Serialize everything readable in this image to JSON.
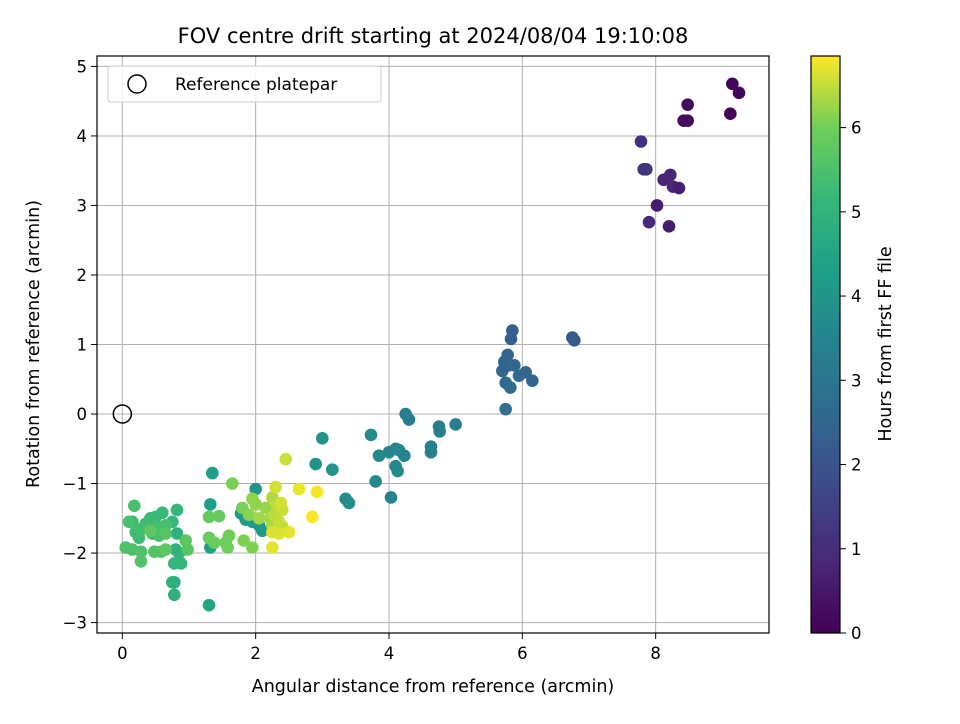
{
  "chart_data": {
    "type": "scatter",
    "title": "FOV centre drift starting at 2024/08/04 19:10:08",
    "xlabel": "Angular distance from reference (arcmin)",
    "ylabel": "Rotation from reference (arcmin)",
    "xlim": [
      -0.38,
      9.7
    ],
    "ylim": [
      -3.15,
      5.15
    ],
    "xticks": [
      0,
      2,
      4,
      6,
      8
    ],
    "yticks": [
      -3,
      -2,
      -1,
      0,
      1,
      2,
      3,
      4,
      5
    ],
    "grid": true,
    "legend": {
      "placement": "upper left",
      "entries": [
        {
          "label": "Reference platepar",
          "marker": "open-circle"
        }
      ]
    },
    "reference_point": {
      "x": 0,
      "y": 0
    },
    "colorbar": {
      "label": "Hours from first FF file",
      "colormap": "viridis",
      "range": [
        0,
        6.85
      ],
      "ticks": [
        0,
        1,
        2,
        3,
        4,
        5,
        6
      ]
    },
    "columns": [
      "x",
      "y",
      "hours"
    ],
    "points": [
      [
        9.15,
        4.75,
        0.05
      ],
      [
        9.25,
        4.62,
        0.1
      ],
      [
        9.12,
        4.32,
        0.12
      ],
      [
        8.48,
        4.45,
        0.2
      ],
      [
        8.42,
        4.22,
        0.25
      ],
      [
        8.48,
        4.22,
        0.22
      ],
      [
        7.78,
        3.92,
        1.05
      ],
      [
        7.82,
        3.52,
        1.15
      ],
      [
        7.86,
        3.52,
        1.2
      ],
      [
        8.12,
        3.37,
        0.75
      ],
      [
        8.22,
        3.44,
        0.8
      ],
      [
        8.26,
        3.27,
        0.85
      ],
      [
        8.35,
        3.25,
        0.7
      ],
      [
        8.02,
        3.0,
        0.6
      ],
      [
        7.9,
        2.76,
        0.9
      ],
      [
        8.2,
        2.7,
        0.55
      ],
      [
        6.75,
        1.1,
        2.1
      ],
      [
        6.78,
        1.06,
        2.15
      ],
      [
        5.85,
        1.2,
        2.3
      ],
      [
        5.83,
        1.08,
        2.35
      ],
      [
        5.78,
        0.85,
        2.4
      ],
      [
        5.73,
        0.75,
        2.5
      ],
      [
        5.8,
        0.7,
        2.45
      ],
      [
        5.7,
        0.62,
        2.55
      ],
      [
        5.88,
        0.7,
        2.6
      ],
      [
        5.95,
        0.55,
        2.6
      ],
      [
        6.05,
        0.6,
        2.45
      ],
      [
        6.15,
        0.48,
        2.5
      ],
      [
        5.75,
        0.45,
        2.65
      ],
      [
        5.82,
        0.38,
        2.7
      ],
      [
        5.75,
        0.07,
        2.75
      ],
      [
        4.25,
        0.0,
        3.2
      ],
      [
        4.3,
        -0.08,
        3.25
      ],
      [
        4.75,
        -0.18,
        3.3
      ],
      [
        4.76,
        -0.25,
        3.35
      ],
      [
        5.0,
        -0.15,
        3.3
      ],
      [
        4.63,
        -0.47,
        3.4
      ],
      [
        4.63,
        -0.55,
        3.45
      ],
      [
        4.1,
        -0.5,
        3.5
      ],
      [
        4.15,
        -0.52,
        3.55
      ],
      [
        4.0,
        -0.55,
        3.5
      ],
      [
        4.23,
        -0.6,
        3.5
      ],
      [
        3.85,
        -0.6,
        3.6
      ],
      [
        4.1,
        -0.75,
        3.6
      ],
      [
        4.13,
        -0.82,
        3.65
      ],
      [
        3.73,
        -0.3,
        3.7
      ],
      [
        3.8,
        -0.97,
        3.6
      ],
      [
        4.03,
        -1.2,
        3.4
      ],
      [
        3.0,
        -0.35,
        3.9
      ],
      [
        2.9,
        -0.72,
        3.95
      ],
      [
        3.15,
        -0.8,
        3.95
      ],
      [
        3.35,
        -1.22,
        3.75
      ],
      [
        3.4,
        -1.28,
        3.8
      ],
      [
        2.0,
        -1.08,
        4.0
      ],
      [
        2.05,
        -1.6,
        4.05
      ],
      [
        1.95,
        -1.55,
        4.15
      ],
      [
        2.1,
        -1.68,
        4.1
      ],
      [
        1.85,
        -1.52,
        4.2
      ],
      [
        1.78,
        -1.43,
        4.25
      ],
      [
        1.35,
        -0.85,
        4.3
      ],
      [
        1.32,
        -1.3,
        4.3
      ],
      [
        1.32,
        -1.92,
        4.4
      ],
      [
        1.3,
        -2.75,
        4.5
      ],
      [
        0.78,
        -2.42,
        4.8
      ],
      [
        0.75,
        -2.42,
        4.85
      ],
      [
        0.78,
        -2.6,
        4.9
      ],
      [
        0.82,
        -1.72,
        4.95
      ],
      [
        0.8,
        -1.95,
        5.0
      ],
      [
        0.85,
        -2.0,
        5.0
      ],
      [
        0.78,
        -2.15,
        5.05
      ],
      [
        0.88,
        -2.15,
        5.05
      ],
      [
        0.82,
        -1.38,
        5.1
      ],
      [
        0.75,
        -1.55,
        5.15
      ],
      [
        0.6,
        -1.42,
        5.2
      ],
      [
        0.5,
        -1.48,
        5.2
      ],
      [
        0.42,
        -1.5,
        5.25
      ],
      [
        0.35,
        -1.58,
        5.3
      ],
      [
        0.15,
        -1.55,
        5.25
      ],
      [
        0.2,
        -1.7,
        5.3
      ],
      [
        0.25,
        -1.78,
        5.3
      ],
      [
        0.3,
        -1.65,
        5.35
      ],
      [
        0.45,
        -1.72,
        5.35
      ],
      [
        0.52,
        -1.62,
        5.4
      ],
      [
        0.65,
        -1.6,
        5.4
      ],
      [
        0.55,
        -1.75,
        5.45
      ],
      [
        0.18,
        -1.32,
        5.45
      ],
      [
        0.1,
        -1.55,
        5.45
      ],
      [
        0.05,
        -1.92,
        5.5
      ],
      [
        0.15,
        -1.95,
        5.5
      ],
      [
        0.28,
        -1.98,
        5.55
      ],
      [
        0.28,
        -2.12,
        5.55
      ],
      [
        0.48,
        -1.98,
        5.6
      ],
      [
        0.58,
        -1.98,
        5.6
      ],
      [
        0.65,
        -1.72,
        5.65
      ],
      [
        0.95,
        -1.82,
        5.7
      ],
      [
        0.98,
        -1.95,
        5.7
      ],
      [
        0.65,
        -1.95,
        5.75
      ],
      [
        0.42,
        -1.68,
        5.75
      ],
      [
        1.3,
        -1.48,
        5.85
      ],
      [
        1.45,
        -1.47,
        5.85
      ],
      [
        1.3,
        -1.78,
        5.9
      ],
      [
        1.38,
        -1.85,
        5.9
      ],
      [
        1.55,
        -1.85,
        5.95
      ],
      [
        1.58,
        -1.92,
        5.95
      ],
      [
        1.6,
        -1.75,
        6.0
      ],
      [
        1.65,
        -1.0,
        6.05
      ],
      [
        1.8,
        -1.35,
        6.05
      ],
      [
        1.82,
        -1.82,
        6.1
      ],
      [
        1.95,
        -1.92,
        6.1
      ],
      [
        1.9,
        -1.45,
        6.15
      ],
      [
        2.0,
        -1.3,
        6.2
      ],
      [
        1.95,
        -1.22,
        6.2
      ],
      [
        2.15,
        -1.35,
        6.25
      ],
      [
        2.05,
        -1.5,
        6.3
      ],
      [
        2.22,
        -1.5,
        6.3
      ],
      [
        2.25,
        -1.6,
        6.35
      ],
      [
        2.25,
        -1.2,
        6.4
      ],
      [
        2.32,
        -1.32,
        6.45
      ],
      [
        2.28,
        -1.45,
        6.45
      ],
      [
        2.35,
        -1.55,
        6.5
      ],
      [
        2.4,
        -1.62,
        6.5
      ],
      [
        2.4,
        -1.38,
        6.55
      ],
      [
        2.3,
        -1.05,
        6.6
      ],
      [
        2.38,
        -1.28,
        6.6
      ],
      [
        2.45,
        -0.65,
        6.55
      ],
      [
        2.25,
        -1.7,
        6.65
      ],
      [
        2.35,
        -1.72,
        6.65
      ],
      [
        2.5,
        -1.7,
        6.7
      ],
      [
        2.25,
        -1.92,
        6.7
      ],
      [
        2.65,
        -1.08,
        6.75
      ],
      [
        2.92,
        -1.12,
        6.8
      ],
      [
        2.85,
        -1.48,
        6.82
      ]
    ]
  }
}
